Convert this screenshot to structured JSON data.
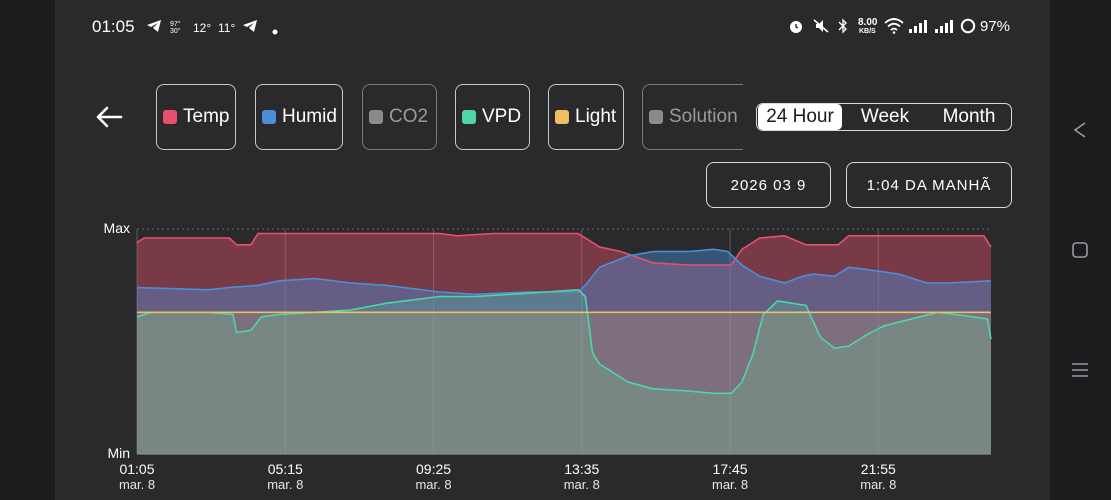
{
  "status_bar": {
    "time": "01:05",
    "temp_a": "12°",
    "temp_b": "11°",
    "network_speed_value": "8.00",
    "network_speed_unit": "KB/S",
    "battery": "97%",
    "icons": [
      "telegram-icon",
      "weather-icon",
      "telegram-icon",
      "dot-icon",
      "alarm-icon",
      "mute-icon",
      "bluetooth-icon",
      "wifi-icon",
      "signal-icon",
      "signal-icon",
      "battery-ring-icon"
    ]
  },
  "toolbar": {
    "series_chips": [
      {
        "label": "Temp",
        "color": "#e8506e",
        "enabled": true
      },
      {
        "label": "Humid",
        "color": "#4a90d9",
        "enabled": true
      },
      {
        "label": "CO2",
        "color": "#8a8a8a",
        "enabled": false
      },
      {
        "label": "VPD",
        "color": "#4dd6a8",
        "enabled": true
      },
      {
        "label": "Light",
        "color": "#f0c060",
        "enabled": true
      },
      {
        "label": "Solution",
        "color": "#8a8a8a",
        "enabled": false
      }
    ],
    "range_options": [
      "24 Hour",
      "Week",
      "Month"
    ],
    "range_selected": "24 Hour",
    "date_value": "2026 03 9",
    "time_value": "1:04 DA MANHÃ"
  },
  "chart_data": {
    "type": "area",
    "y_labels": {
      "max": "Max",
      "min": "Min"
    },
    "ylim": [
      0,
      100
    ],
    "x_ticks": [
      {
        "time": "01:05",
        "date": "mar. 8",
        "hour": 0
      },
      {
        "time": "05:15",
        "date": "mar. 8",
        "hour": 4.1667
      },
      {
        "time": "09:25",
        "date": "mar. 8",
        "hour": 8.3333
      },
      {
        "time": "13:35",
        "date": "mar. 8",
        "hour": 12.5
      },
      {
        "time": "17:45",
        "date": "mar. 8",
        "hour": 16.6667
      },
      {
        "time": "21:55",
        "date": "mar. 8",
        "hour": 20.8333
      }
    ],
    "x_max_hour": 24,
    "grid": true,
    "series": [
      {
        "name": "Temp",
        "color": "#e8506e",
        "points": [
          [
            0,
            94
          ],
          [
            0.2,
            96
          ],
          [
            1,
            96
          ],
          [
            2.6,
            96
          ],
          [
            2.8,
            93
          ],
          [
            3.2,
            93
          ],
          [
            3.4,
            98
          ],
          [
            6,
            98
          ],
          [
            8.5,
            98
          ],
          [
            9,
            97
          ],
          [
            10,
            98
          ],
          [
            12.4,
            98
          ],
          [
            12.6,
            96
          ],
          [
            13,
            92
          ],
          [
            13.6,
            90
          ],
          [
            14.5,
            85
          ],
          [
            15.5,
            84
          ],
          [
            16.3,
            84
          ],
          [
            16.7,
            84
          ],
          [
            17,
            91
          ],
          [
            17.5,
            96
          ],
          [
            18.2,
            97
          ],
          [
            18.8,
            93
          ],
          [
            19.7,
            93
          ],
          [
            20,
            97
          ],
          [
            21,
            97
          ],
          [
            22.2,
            97
          ],
          [
            23.8,
            97
          ],
          [
            24,
            92
          ]
        ]
      },
      {
        "name": "Humid",
        "color": "#4a90d9",
        "points": [
          [
            0,
            74
          ],
          [
            2,
            73
          ],
          [
            2.6,
            74
          ],
          [
            3.4,
            75
          ],
          [
            4,
            77
          ],
          [
            5,
            78
          ],
          [
            6,
            76
          ],
          [
            7,
            75
          ],
          [
            8.5,
            72
          ],
          [
            9.5,
            71
          ],
          [
            11,
            72
          ],
          [
            12.4,
            72
          ],
          [
            12.6,
            75
          ],
          [
            13,
            83
          ],
          [
            13.8,
            88
          ],
          [
            14.5,
            90
          ],
          [
            15.5,
            90
          ],
          [
            16.2,
            91
          ],
          [
            16.6,
            90
          ],
          [
            17,
            84
          ],
          [
            17.5,
            79
          ],
          [
            18.2,
            76
          ],
          [
            18.7,
            79
          ],
          [
            19,
            80
          ],
          [
            19.6,
            79
          ],
          [
            20,
            83
          ],
          [
            20.5,
            82
          ],
          [
            21.4,
            80
          ],
          [
            22.2,
            76
          ],
          [
            22.8,
            76
          ],
          [
            24,
            77
          ]
        ]
      },
      {
        "name": "VPD",
        "color": "#4dd6a8",
        "points": [
          [
            0,
            61
          ],
          [
            0.4,
            63
          ],
          [
            1,
            63
          ],
          [
            2,
            63
          ],
          [
            2.7,
            62
          ],
          [
            2.8,
            54
          ],
          [
            3.2,
            55
          ],
          [
            3.5,
            61
          ],
          [
            4,
            62
          ],
          [
            5,
            63
          ],
          [
            6,
            64
          ],
          [
            7,
            67
          ],
          [
            8.5,
            70
          ],
          [
            9.5,
            70
          ],
          [
            10.5,
            71
          ],
          [
            11.5,
            72
          ],
          [
            12.4,
            73
          ],
          [
            12.6,
            70
          ],
          [
            12.8,
            45
          ],
          [
            13,
            40
          ],
          [
            13.8,
            32
          ],
          [
            14.5,
            29
          ],
          [
            15.5,
            28
          ],
          [
            16.2,
            27
          ],
          [
            16.7,
            27
          ],
          [
            17,
            32
          ],
          [
            17.3,
            44
          ],
          [
            17.6,
            62
          ],
          [
            18,
            68
          ],
          [
            18.8,
            66
          ],
          [
            19.2,
            52
          ],
          [
            19.6,
            47
          ],
          [
            20,
            48
          ],
          [
            20.5,
            53
          ],
          [
            21,
            57
          ],
          [
            21.5,
            59
          ],
          [
            22.5,
            63
          ],
          [
            23,
            62
          ],
          [
            23.5,
            61
          ],
          [
            23.9,
            60
          ],
          [
            24,
            51
          ]
        ]
      },
      {
        "name": "Light",
        "color": "#f0c060",
        "points": [
          [
            0,
            63
          ],
          [
            24,
            63
          ]
        ]
      }
    ]
  }
}
